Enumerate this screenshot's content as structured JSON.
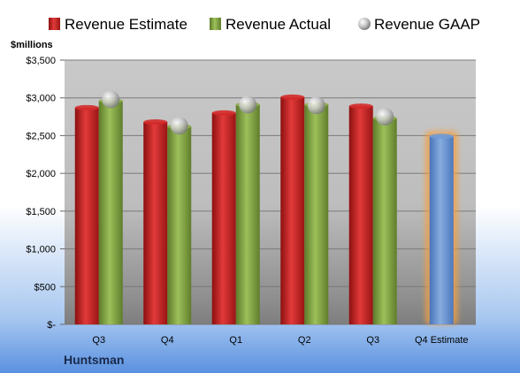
{
  "chart_data": {
    "type": "bar",
    "title": "",
    "ylabel": "$millions",
    "company": "Huntsman",
    "categories": [
      "Q3",
      "Q4",
      "Q1",
      "Q2",
      "Q3",
      "Q4 Estimate"
    ],
    "yticks": [
      "$-",
      "$500",
      "$1,000",
      "$1,500",
      "$2,000",
      "$2,500",
      "$3,000",
      "$3,500"
    ],
    "ytick_values": [
      0,
      500,
      1000,
      1500,
      2000,
      2500,
      3000,
      3500
    ],
    "ylim": [
      0,
      3500
    ],
    "grid": true,
    "legend_position": "top",
    "series": [
      {
        "name": "Revenue Estimate",
        "kind": "bar",
        "color": "#d42a2a",
        "values": [
          2870,
          2680,
          2800,
          3010,
          2890,
          null
        ]
      },
      {
        "name": "Revenue Actual",
        "kind": "bar",
        "color": "#8cae4a",
        "values": [
          2960,
          2620,
          2910,
          2910,
          2730,
          null
        ]
      },
      {
        "name": "Revenue GAAP",
        "kind": "marker",
        "color": "#b0b0b0",
        "values": [
          2980,
          2630,
          2910,
          2900,
          2750,
          null
        ]
      },
      {
        "name": "Q4 Estimate",
        "kind": "bar",
        "color": "#6f9ad6",
        "values": [
          null,
          null,
          null,
          null,
          null,
          2490
        ]
      }
    ]
  }
}
